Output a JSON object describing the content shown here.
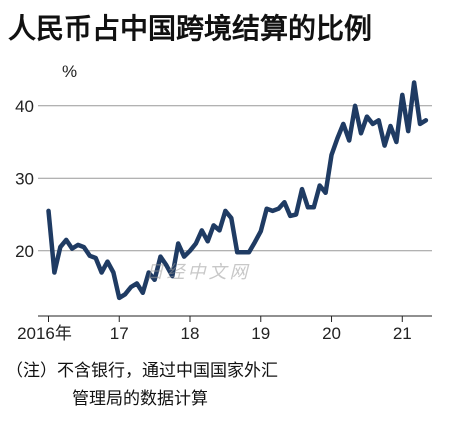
{
  "chart_data": {
    "type": "line",
    "title": "人民币占中国跨境结算的比例",
    "ylabel": "%",
    "ylim": [
      11,
      47
    ],
    "yticks": [
      20,
      30,
      40
    ],
    "xlim": [
      2016.0,
      2021.42
    ],
    "xticks": [
      {
        "pos": 2016,
        "label": "2016年"
      },
      {
        "pos": 2017,
        "label": "17"
      },
      {
        "pos": 2018,
        "label": "18"
      },
      {
        "pos": 2019,
        "label": "19"
      },
      {
        "pos": 2020,
        "label": "20"
      },
      {
        "pos": 2021,
        "label": "21"
      }
    ],
    "grid": "horizontal",
    "line_color": "#1f3b63",
    "series": [
      {
        "x": [
          "2016-01",
          "2016-02",
          "2016-03",
          "2016-04",
          "2016-05",
          "2016-06",
          "2016-07",
          "2016-08",
          "2016-09",
          "2016-10",
          "2016-11",
          "2016-12",
          "2017-01",
          "2017-02",
          "2017-03",
          "2017-04",
          "2017-05",
          "2017-06",
          "2017-07",
          "2017-08",
          "2017-09",
          "2017-10",
          "2017-11",
          "2017-12",
          "2018-01",
          "2018-02",
          "2018-03",
          "2018-04",
          "2018-05",
          "2018-06",
          "2018-07",
          "2018-08",
          "2018-09",
          "2018-10",
          "2018-11",
          "2018-12",
          "2019-01",
          "2019-02",
          "2019-03",
          "2019-04",
          "2019-05",
          "2019-06",
          "2019-07",
          "2019-08",
          "2019-09",
          "2019-10",
          "2019-11",
          "2019-12",
          "2020-01",
          "2020-02",
          "2020-03",
          "2020-04",
          "2020-05",
          "2020-06",
          "2020-07",
          "2020-08",
          "2020-09",
          "2020-10",
          "2020-11",
          "2020-12",
          "2021-01",
          "2021-02",
          "2021-03",
          "2021-04",
          "2021-05"
        ],
        "values": [
          25.5,
          17,
          20.5,
          21.5,
          20.3,
          20.8,
          20.5,
          19.3,
          19,
          17,
          18.5,
          17,
          13.5,
          14,
          15,
          15.5,
          14.2,
          17,
          16,
          19.2,
          18,
          16.5,
          21,
          19.2,
          20,
          21,
          22.8,
          21.3,
          23.5,
          22.8,
          25.5,
          24.5,
          19.8,
          19.8,
          19.8,
          21.2,
          22.7,
          25.8,
          25.5,
          25.8,
          26.7,
          24.8,
          25,
          28.5,
          26,
          26,
          29,
          28,
          33.2,
          35.5,
          37.5,
          35.2,
          40,
          36.2,
          38.5,
          37.5,
          38,
          34.5,
          37.2,
          35,
          41.5,
          36.5,
          43.2,
          37.5,
          38
        ]
      }
    ]
  },
  "watermark": "日经中文网",
  "footnote": {
    "line1": "（注）不含银行，通过中国国家外汇",
    "line2": "管理局的数据计算"
  }
}
